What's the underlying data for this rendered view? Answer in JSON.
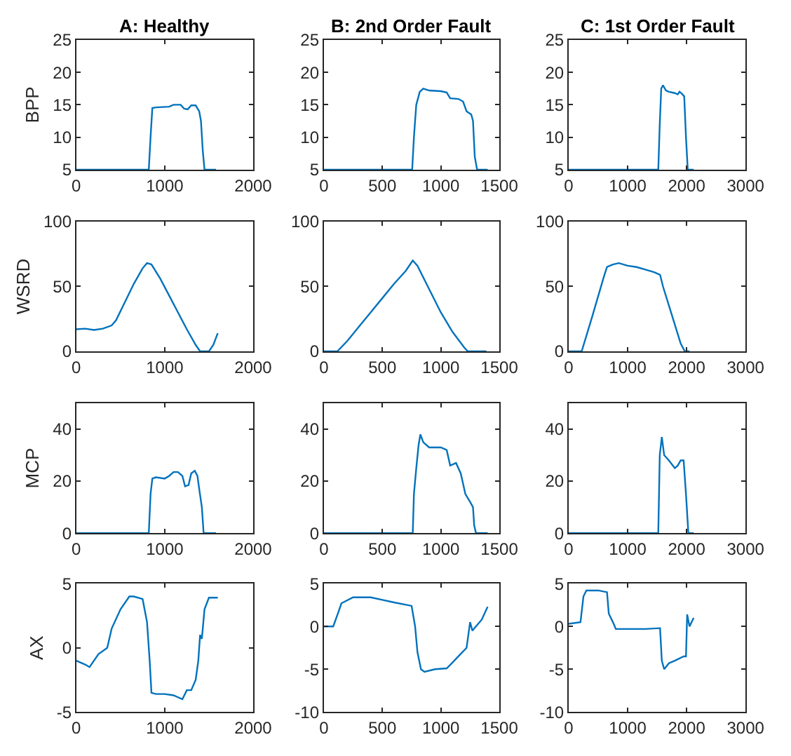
{
  "chart_data": [
    {
      "type": "line",
      "title": "A: Healthy",
      "ylabel": "BPP",
      "xlim": [
        0,
        2000
      ],
      "xticks": [
        0,
        1000,
        2000
      ],
      "ylim": [
        5,
        25
      ],
      "yticks": [
        5,
        10,
        15,
        20,
        25
      ],
      "x": [
        0,
        820,
        840,
        860,
        900,
        1050,
        1100,
        1180,
        1220,
        1260,
        1300,
        1350,
        1390,
        1410,
        1430,
        1450,
        1580
      ],
      "series": [
        {
          "color": "#0072bd",
          "values": [
            5,
            5,
            10,
            14.5,
            14.6,
            14.7,
            15,
            15,
            14.4,
            14.3,
            14.9,
            14.9,
            14,
            12.5,
            8,
            5,
            5
          ]
        }
      ]
    },
    {
      "type": "line",
      "title": "B: 2nd Order Fault",
      "xlim": [
        0,
        1500
      ],
      "xticks": [
        0,
        500,
        1000,
        1500
      ],
      "ylim": [
        5,
        25
      ],
      "yticks": [
        5,
        10,
        15,
        20,
        25
      ],
      "x": [
        0,
        755,
        770,
        790,
        820,
        850,
        900,
        1000,
        1050,
        1080,
        1150,
        1190,
        1220,
        1260,
        1275,
        1290,
        1310,
        1400
      ],
      "series": [
        {
          "color": "#0072bd",
          "values": [
            5,
            5,
            10,
            15,
            17,
            17.5,
            17.2,
            17.1,
            16.9,
            16,
            15.9,
            15.5,
            14,
            13.5,
            12.5,
            7,
            5,
            5
          ]
        }
      ]
    },
    {
      "type": "line",
      "title": "C: 1st Order Fault",
      "xlim": [
        0,
        3000
      ],
      "xticks": [
        0,
        1000,
        2000,
        3000
      ],
      "ylim": [
        5,
        25
      ],
      "yticks": [
        5,
        10,
        15,
        20,
        25
      ],
      "x": [
        0,
        1520,
        1545,
        1570,
        1600,
        1650,
        1700,
        1800,
        1850,
        1880,
        1920,
        1960,
        1990,
        2020,
        2120
      ],
      "series": [
        {
          "color": "#0072bd",
          "values": [
            5,
            5,
            12,
            17.5,
            18,
            17.2,
            17,
            16.8,
            16.6,
            17,
            16.7,
            16.3,
            10,
            5,
            5
          ]
        }
      ]
    },
    {
      "type": "line",
      "ylabel": "WSRD",
      "xlim": [
        0,
        2000
      ],
      "xticks": [
        0,
        1000,
        2000
      ],
      "ylim": [
        0,
        100
      ],
      "yticks": [
        0,
        50,
        100
      ],
      "x": [
        0,
        100,
        200,
        300,
        400,
        450,
        550,
        650,
        750,
        800,
        850,
        950,
        1050,
        1150,
        1250,
        1350,
        1400,
        1500,
        1550,
        1600
      ],
      "series": [
        {
          "color": "#0072bd",
          "values": [
            17,
            17.5,
            16.5,
            17.5,
            20,
            24,
            38,
            52,
            64,
            68,
            67,
            56,
            43,
            30,
            17,
            5,
            0,
            0,
            5,
            14
          ]
        }
      ]
    },
    {
      "type": "line",
      "xlim": [
        0,
        1500
      ],
      "xticks": [
        0,
        500,
        1000,
        1500
      ],
      "ylim": [
        0,
        100
      ],
      "yticks": [
        0,
        50,
        100
      ],
      "x": [
        0,
        115,
        200,
        300,
        400,
        500,
        600,
        700,
        760,
        800,
        900,
        1000,
        1100,
        1200,
        1230,
        1390
      ],
      "series": [
        {
          "color": "#0072bd",
          "values": [
            0,
            0,
            8,
            19,
            30,
            41,
            52,
            62,
            70,
            66,
            48,
            30,
            15,
            3,
            0,
            0
          ]
        }
      ]
    },
    {
      "type": "line",
      "xlim": [
        0,
        3000
      ],
      "xticks": [
        0,
        1000,
        2000,
        3000
      ],
      "ylim": [
        0,
        100
      ],
      "yticks": [
        0,
        50,
        100
      ],
      "x": [
        0,
        220,
        400,
        600,
        650,
        750,
        850,
        1000,
        1150,
        1300,
        1450,
        1550,
        1600,
        1750,
        1900,
        1970,
        2050
      ],
      "series": [
        {
          "color": "#0072bd",
          "values": [
            0,
            0,
            27,
            58,
            65,
            67,
            68,
            66,
            65,
            63,
            61,
            59,
            50,
            28,
            6,
            0,
            0
          ]
        }
      ]
    },
    {
      "type": "line",
      "ylabel": "MCP",
      "xlim": [
        0,
        2000
      ],
      "xticks": [
        0,
        1000,
        2000
      ],
      "ylim": [
        0,
        50
      ],
      "yticks": [
        0,
        20,
        40
      ],
      "x": [
        0,
        820,
        840,
        860,
        900,
        1000,
        1050,
        1100,
        1150,
        1200,
        1230,
        1270,
        1300,
        1340,
        1370,
        1390,
        1420,
        1440,
        1580
      ],
      "series": [
        {
          "color": "#0072bd",
          "values": [
            0,
            0,
            15,
            21,
            21.5,
            21,
            22,
            23.5,
            23.5,
            22,
            18,
            18.5,
            23,
            24,
            22,
            17,
            10,
            0,
            0
          ]
        }
      ]
    },
    {
      "type": "line",
      "xlim": [
        0,
        1500
      ],
      "xticks": [
        0,
        500,
        1000,
        1500
      ],
      "ylim": [
        0,
        50
      ],
      "yticks": [
        0,
        20,
        40
      ],
      "x": [
        0,
        760,
        770,
        790,
        810,
        825,
        850,
        900,
        1000,
        1050,
        1080,
        1130,
        1170,
        1210,
        1250,
        1275,
        1285,
        1300,
        1400
      ],
      "series": [
        {
          "color": "#0072bd",
          "values": [
            0,
            0,
            15,
            25,
            34,
            38,
            35,
            33,
            33,
            32,
            26,
            27,
            23,
            15,
            12,
            10,
            3,
            0,
            0
          ]
        }
      ]
    },
    {
      "type": "line",
      "xlim": [
        0,
        3000
      ],
      "xticks": [
        0,
        1000,
        2000,
        3000
      ],
      "ylim": [
        0,
        50
      ],
      "yticks": [
        0,
        20,
        40
      ],
      "x": [
        0,
        1520,
        1545,
        1580,
        1620,
        1700,
        1800,
        1850,
        1900,
        1950,
        1990,
        2030,
        2120
      ],
      "series": [
        {
          "color": "#0072bd",
          "values": [
            0,
            0,
            30,
            37,
            30,
            28,
            25,
            26,
            28,
            28,
            15,
            0,
            0
          ]
        }
      ]
    },
    {
      "type": "line",
      "ylabel": "AX",
      "xlim": [
        0,
        2000
      ],
      "xticks": [
        0,
        1000,
        2000
      ],
      "ylim": [
        -5,
        5
      ],
      "yticks": [
        -5,
        0,
        5
      ],
      "x": [
        0,
        100,
        150,
        250,
        350,
        400,
        500,
        600,
        650,
        750,
        800,
        830,
        850,
        900,
        1000,
        1100,
        1200,
        1250,
        1300,
        1350,
        1380,
        1400,
        1420,
        1450,
        1500,
        1600
      ],
      "series": [
        {
          "color": "#0072bd",
          "values": [
            -1,
            -1.3,
            -1.5,
            -0.5,
            0,
            1.5,
            3,
            4,
            4,
            3.8,
            2,
            -1,
            -3.5,
            -3.6,
            -3.6,
            -3.7,
            -4,
            -3.3,
            -3.3,
            -2.5,
            -1,
            1,
            0.7,
            3,
            3.9,
            3.9
          ]
        }
      ]
    },
    {
      "type": "line",
      "xlim": [
        0,
        1500
      ],
      "xticks": [
        0,
        500,
        1000,
        1500
      ],
      "ylim": [
        -10,
        5
      ],
      "yticks": [
        -10,
        -5,
        0,
        5
      ],
      "x": [
        0,
        80,
        120,
        150,
        250,
        400,
        500,
        600,
        750,
        780,
        800,
        830,
        860,
        950,
        1050,
        1080,
        1150,
        1220,
        1250,
        1270,
        1300,
        1350,
        1400
      ],
      "series": [
        {
          "color": "#0072bd",
          "values": [
            0,
            0,
            1.5,
            2.7,
            3.4,
            3.4,
            3.1,
            2.8,
            2.4,
            0,
            -3,
            -5,
            -5.3,
            -5,
            -4.9,
            -4.5,
            -3.5,
            -2.5,
            0.5,
            -0.5,
            0,
            0.8,
            2.3
          ]
        }
      ]
    },
    {
      "type": "line",
      "xlim": [
        0,
        3000
      ],
      "xticks": [
        0,
        1000,
        2000,
        3000
      ],
      "ylim": [
        -10,
        5
      ],
      "yticks": [
        -10,
        -5,
        0,
        5
      ],
      "x": [
        0,
        200,
        250,
        300,
        500,
        650,
        680,
        750,
        800,
        1000,
        1300,
        1550,
        1580,
        1620,
        1700,
        1800,
        1950,
        1990,
        2010,
        2050,
        2120
      ],
      "series": [
        {
          "color": "#0072bd",
          "values": [
            0.3,
            0.5,
            3.5,
            4.2,
            4.2,
            4,
            1.5,
            0.5,
            -0.3,
            -0.3,
            -0.3,
            -0.2,
            -4,
            -5,
            -4.3,
            -4,
            -3.5,
            -3.5,
            1.4,
            0,
            1
          ]
        }
      ]
    }
  ]
}
